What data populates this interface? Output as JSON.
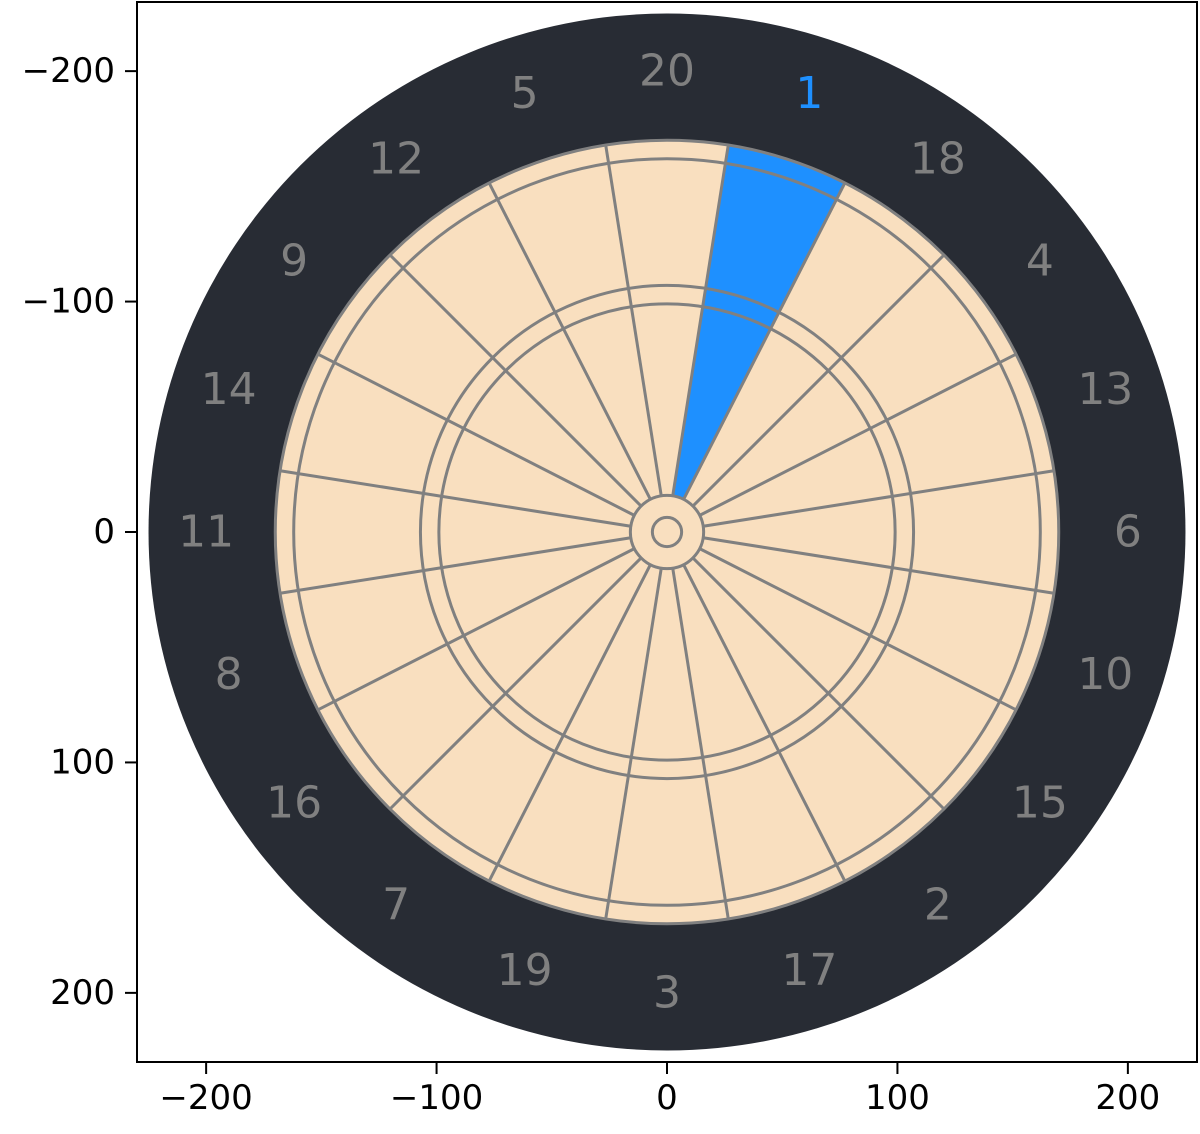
{
  "chart_data": {
    "type": "dartboard",
    "title": "",
    "xlabel": "",
    "ylabel": "",
    "xlim": [
      -230,
      230
    ],
    "ylim": [
      230,
      -230
    ],
    "y_inverted": true,
    "x_ticks": [
      -200,
      -100,
      0,
      100,
      200
    ],
    "y_ticks": [
      -200,
      -100,
      0,
      100,
      200
    ],
    "x_tick_labels": [
      "−200",
      "−100",
      "0",
      "100",
      "200"
    ],
    "y_tick_labels": [
      "−200",
      "−100",
      "0",
      "100",
      "200"
    ],
    "sector_numbers": [
      "20",
      "1",
      "18",
      "4",
      "13",
      "6",
      "10",
      "15",
      "2",
      "17",
      "3",
      "19",
      "7",
      "16",
      "8",
      "11",
      "14",
      "9",
      "12",
      "5"
    ],
    "ring_radii": {
      "bullseye": 6.35,
      "outer_bull": 15.9,
      "triple_inner": 99,
      "triple_outer": 107,
      "double_inner": 162,
      "double_outer": 170,
      "board_edge": 225,
      "number_radius": 200
    },
    "highlighted_sector": "1",
    "colors": {
      "surround": "#282c34",
      "board_face": "#f9dfbf",
      "wire": "#808080",
      "highlight": "#1e90ff",
      "number_default": "#808080",
      "axes": "#000000"
    }
  }
}
